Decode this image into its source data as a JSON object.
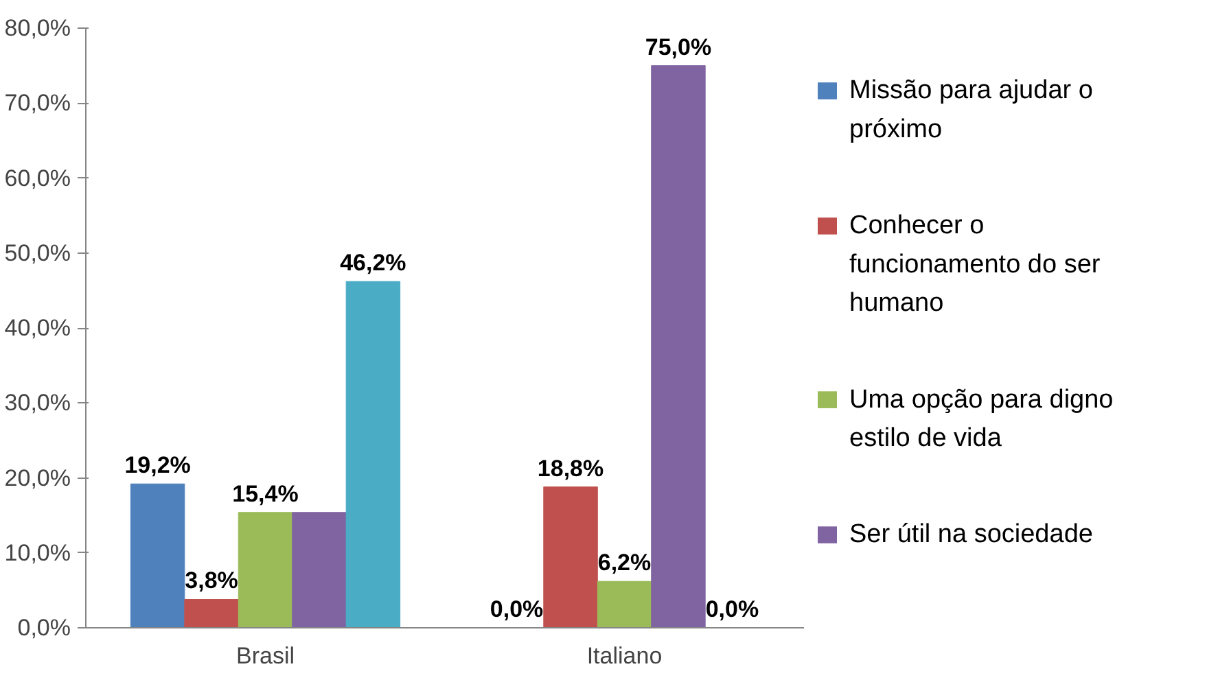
{
  "chart_data": {
    "type": "bar",
    "categories": [
      "Brasil",
      "Italiano"
    ],
    "series": [
      {
        "name": "Missão para ajudar o próximo",
        "color": "#4f81bd",
        "values": [
          19.2,
          0.0
        ],
        "value_labels": [
          "19,2%",
          "0,0%"
        ]
      },
      {
        "name": "Conhecer o funcionamento do ser humano",
        "color": "#c0504d",
        "values": [
          3.8,
          18.8
        ],
        "value_labels": [
          "3,8%",
          "18,8%"
        ]
      },
      {
        "name": "Uma opção para digno estilo de vida",
        "color": "#9bbb59",
        "values": [
          15.4,
          6.2
        ],
        "value_labels": [
          "15,4%",
          "6,2%"
        ]
      },
      {
        "name": "Ser útil na sociedade",
        "color": "#8064a2",
        "values": [
          15.4,
          75.0
        ],
        "value_labels": [
          null,
          "75,0%"
        ]
      },
      {
        "color": "#4bacc6",
        "values": [
          46.2,
          0.0
        ],
        "value_labels": [
          "46,2%",
          "0,0%"
        ]
      }
    ],
    "ylim": [
      0,
      80
    ],
    "yticks": [
      {
        "value": 0,
        "label": "0,0%"
      },
      {
        "value": 10,
        "label": "10,0%"
      },
      {
        "value": 20,
        "label": "20,0%"
      },
      {
        "value": 30,
        "label": "30,0%"
      },
      {
        "value": 40,
        "label": "40,0%"
      },
      {
        "value": 50,
        "label": "50,0%"
      },
      {
        "value": 60,
        "label": "60,0%"
      },
      {
        "value": 70,
        "label": "70,0%"
      },
      {
        "value": 80,
        "label": "80,0%"
      }
    ],
    "grid": false,
    "legend": "right"
  }
}
